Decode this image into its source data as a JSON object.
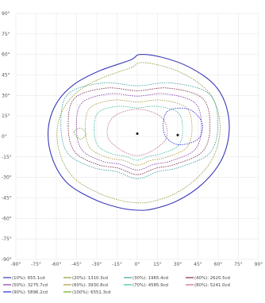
{
  "chart_data": {
    "type": "contour",
    "title": "",
    "xlabel": "",
    "ylabel": "",
    "xlim": [
      -90,
      90
    ],
    "ylim": [
      -90,
      90
    ],
    "x_ticks": [
      "-90°",
      "-75°",
      "-60°",
      "-45°",
      "-30°",
      "-15°",
      "0°",
      "15°",
      "30°",
      "45°",
      "60°",
      "75°",
      "90°"
    ],
    "y_ticks": [
      "90°",
      "75°",
      "60°",
      "45°",
      "30°",
      "15°",
      "0°",
      "-15°",
      "-30°",
      "-45°",
      "-60°",
      "-75°",
      "-90°"
    ],
    "grid": true,
    "legend_position": "bottom",
    "series": [
      {
        "name": "(10%): 655.1cd",
        "percent": 10,
        "value_cd": 655.1,
        "color": "#3a3ab8"
      },
      {
        "name": "(20%): 1310.3cd",
        "percent": 20,
        "value_cd": 1310.3,
        "color": "#8a9a3a"
      },
      {
        "name": "(30%): 1965.4cd",
        "percent": 30,
        "value_cd": 1965.4,
        "color": "#3aa0a0"
      },
      {
        "name": "(40%): 2620.5cd",
        "percent": 40,
        "value_cd": 2620.5,
        "color": "#7a2a4a"
      },
      {
        "name": "(50%): 3275.7cd",
        "percent": 50,
        "value_cd": 3275.7,
        "color": "#8a3aa8"
      },
      {
        "name": "(60%): 3930.8cd",
        "percent": 60,
        "value_cd": 3930.8,
        "color": "#a89a40"
      },
      {
        "name": "(70%): 4585.9cd",
        "percent": 70,
        "value_cd": 4585.9,
        "color": "#40b8a0"
      },
      {
        "name": "(80%): 5241.0cd",
        "percent": 80,
        "value_cd": 5241.0,
        "color": "#c06888"
      },
      {
        "name": "(90%): 5896.2cd",
        "percent": 90,
        "value_cd": 5896.2,
        "color": "#2a2ad0"
      },
      {
        "name": "(100%): 6551.3cd",
        "percent": 100,
        "value_cd": 6551.3,
        "color": "#70a828"
      }
    ],
    "peaks": [
      {
        "x": 0,
        "y": 2
      },
      {
        "x": 30,
        "y": 1
      }
    ]
  }
}
